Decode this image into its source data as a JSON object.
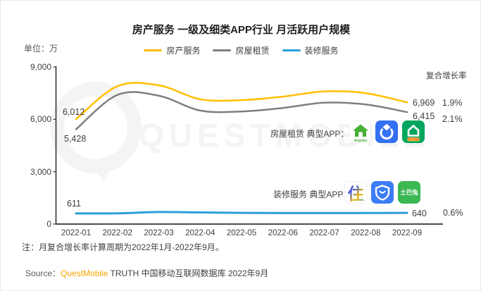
{
  "header": {
    "title": "房产服务 一级及细类APP行业 月活跃用户规模",
    "unit_label": "单位：万"
  },
  "legend": [
    {
      "label": "房产服务",
      "color": "#FFBF00"
    },
    {
      "label": "房屋租赁",
      "color": "#7F7F7F"
    },
    {
      "label": "装修服务",
      "color": "#2B9FD8"
    }
  ],
  "growth": {
    "header_label": "复合增长率"
  },
  "chart_data": {
    "type": "line",
    "x": [
      "2022-01",
      "2022-02",
      "2022-03",
      "2022-04",
      "2022-05",
      "2022-06",
      "2022-07",
      "2022-08",
      "2022-09"
    ],
    "series": [
      {
        "name": "房产服务",
        "color": "#FFBF00",
        "values": [
          6012,
          7900,
          7950,
          7150,
          7100,
          7300,
          7600,
          7500,
          6969
        ],
        "start_label": "6,012",
        "end_label": "6,969",
        "growth": "1.9%"
      },
      {
        "name": "房屋租赁",
        "color": "#7F7F7F",
        "values": [
          5428,
          7400,
          7350,
          6500,
          6450,
          6650,
          6950,
          6850,
          6415
        ],
        "start_label": "5,428",
        "end_label": "6,415",
        "growth": "2.1%"
      },
      {
        "name": "装修服务",
        "color": "#2B9FD8",
        "values": [
          611,
          618,
          690,
          665,
          640,
          628,
          630,
          635,
          640
        ],
        "start_label": "611",
        "end_label": "640",
        "growth": "0.6%"
      }
    ],
    "ylim": [
      0,
      9000
    ],
    "yticks": [
      {
        "label": "0",
        "value": 0
      },
      {
        "label": "3,000",
        "value": 3000
      },
      {
        "label": "6,000",
        "value": 6000
      },
      {
        "label": "9,000",
        "value": 9000
      }
    ],
    "ylabel": "单位：万",
    "grid": "off",
    "legend_position": "top-center",
    "note": "月复合增长率计算周期为2022年1月-2022年9月"
  },
  "apps": {
    "rental": {
      "label": "房屋租赁 典型APP：",
      "anjuke_text": "Anjuke",
      "lianjia_banner": "真实房源",
      "icon_names": [
        "安居客",
        "贝壳找房",
        "链家"
      ]
    },
    "decor": {
      "label": "装修服务 典型APP：",
      "zhu_char": "住",
      "tubatu_text": "土巴兔",
      "icon_names": [
        "住小帮",
        "装修保障",
        "土巴兔"
      ]
    }
  },
  "footer": {
    "note": "注：月复合增长率计算周期为2022年1月-2022年9月。",
    "source_prefix": "Source：",
    "source_brand": "QuestMobile",
    "source_rest": " TRUTH 中国移动互联网数据库 2022年9月"
  },
  "watermark": {
    "text": "QUESTMOBILE"
  },
  "colors": {
    "brand_orange": "#F7A600",
    "axis": "#333333",
    "watermark": "#f4f4f4"
  }
}
